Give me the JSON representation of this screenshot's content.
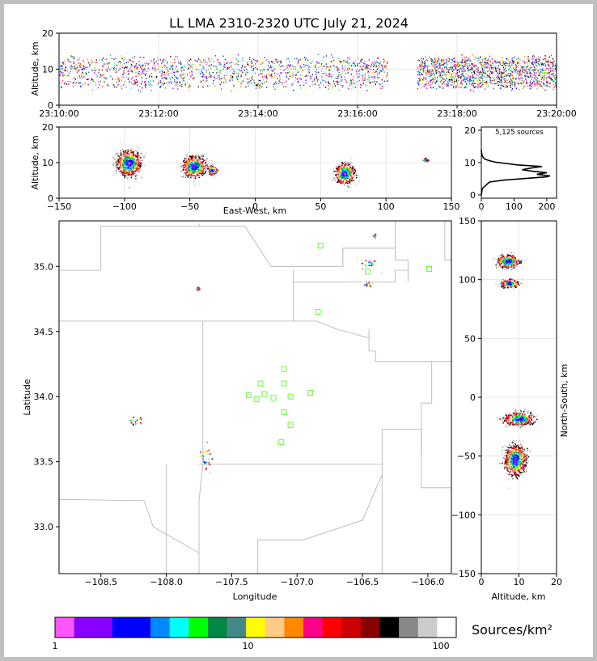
{
  "chart_data": [
    {
      "id": "time_height",
      "type": "scatter",
      "title": "LL LMA 2310-2320 UTC July 21, 2024",
      "xlabel": "",
      "ylabel": "Altitude, km",
      "x_ticks": [
        "23:10:00",
        "23:12:00",
        "23:14:00",
        "23:16:00",
        "23:18:00",
        "23:20:00"
      ],
      "y_ticks": [
        "0",
        "10",
        "20"
      ],
      "xlim": [
        0,
        10
      ],
      "ylim": [
        0,
        20
      ],
      "grid": true,
      "activity_bursts_minutes": [
        [
          0.0,
          6.6
        ],
        [
          7.2,
          10.0
        ]
      ],
      "altitude_band_km": [
        5,
        13
      ]
    },
    {
      "id": "ew_altitude",
      "type": "scatter",
      "xlabel": "East-West, km",
      "ylabel": "Altitude, km",
      "x_ticks": [
        "−150",
        "−100",
        "−50",
        "0",
        "50",
        "100",
        "150"
      ],
      "y_ticks": [
        "0",
        "10",
        "20"
      ],
      "xlim": [
        -150,
        150
      ],
      "ylim": [
        0,
        20
      ],
      "grid": true,
      "clusters": [
        {
          "x": -97,
          "z": 10,
          "sx": 5,
          "sz": 2
        },
        {
          "x": -47,
          "z": 9,
          "sx": 5,
          "sz": 1.6
        },
        {
          "x": -33,
          "z": 8,
          "sx": 2,
          "sz": 0.7
        },
        {
          "x": 68,
          "z": 7,
          "sx": 4,
          "sz": 1.6
        },
        {
          "x": 130,
          "z": 10.8,
          "sx": 1,
          "sz": 0.3
        }
      ]
    },
    {
      "id": "altitude_histogram",
      "type": "line",
      "annotation": "5,125 sources",
      "x_ticks": [
        "0",
        "100",
        "200"
      ],
      "y_ticks": [
        "0",
        "10",
        "20"
      ],
      "xlim": [
        0,
        230
      ],
      "ylim": [
        -1,
        21
      ],
      "profile": [
        [
          0,
          0
        ],
        [
          3,
          2
        ],
        [
          25,
          4
        ],
        [
          70,
          4.6
        ],
        [
          135,
          5.1
        ],
        [
          200,
          5.6
        ],
        [
          210,
          5.9
        ],
        [
          170,
          6.4
        ],
        [
          200,
          6.9
        ],
        [
          160,
          7.3
        ],
        [
          125,
          7.8
        ],
        [
          150,
          8.3
        ],
        [
          185,
          8.8
        ],
        [
          110,
          9.3
        ],
        [
          45,
          10.1
        ],
        [
          25,
          10.6
        ],
        [
          10,
          11.1
        ],
        [
          3,
          12
        ],
        [
          1,
          13
        ],
        [
          0,
          14
        ]
      ]
    },
    {
      "id": "plan_view",
      "type": "scatter",
      "xlabel": "Longitude",
      "ylabel": "Latitude",
      "x_ticks": [
        {
          "v": -108.5,
          "label": "−108.5"
        },
        {
          "v": -108.0,
          "label": "−108.0"
        },
        {
          "v": -107.5,
          "label": "−107.5"
        },
        {
          "v": -107.0,
          "label": "−107.0"
        },
        {
          "v": -106.5,
          "label": "−106.5"
        },
        {
          "v": -106.0,
          "label": "−106.0"
        }
      ],
      "y_ticks": [
        {
          "v": 33.0,
          "label": "33.0"
        },
        {
          "v": 33.5,
          "label": "33.5"
        },
        {
          "v": 34.0,
          "label": "34.0"
        },
        {
          "v": 34.5,
          "label": "34.5"
        },
        {
          "v": 35.0,
          "label": "35.0"
        }
      ],
      "xlim": [
        -108.82,
        -105.82
      ],
      "ylim": [
        32.64,
        35.35
      ],
      "stations": [
        [
          -106.82,
          35.16
        ],
        [
          -105.99,
          34.98
        ],
        [
          -106.46,
          34.96
        ],
        [
          -106.84,
          34.65
        ],
        [
          -107.1,
          34.21
        ],
        [
          -107.1,
          34.1
        ],
        [
          -107.28,
          34.1
        ],
        [
          -107.25,
          34.02
        ],
        [
          -107.37,
          34.01
        ],
        [
          -107.31,
          33.98
        ],
        [
          -107.18,
          33.99
        ],
        [
          -107.05,
          34.0
        ],
        [
          -106.9,
          34.03
        ],
        [
          -107.1,
          33.88
        ],
        [
          -107.05,
          33.78
        ],
        [
          -107.12,
          33.65
        ]
      ],
      "clusters": [
        {
          "lon": -106.45,
          "lat": 35.02,
          "slon": 0.035,
          "slat": 0.022
        },
        {
          "lon": -106.47,
          "lat": 34.86,
          "slon": 0.022,
          "slat": 0.01
        },
        {
          "lon": -108.24,
          "lat": 33.82,
          "slon": 0.035,
          "slat": 0.015
        },
        {
          "lon": -107.71,
          "lat": 33.53,
          "slon": 0.03,
          "slat": 0.045
        },
        {
          "lon": -107.76,
          "lat": 34.83,
          "slon": 0.008,
          "slat": 0.008
        },
        {
          "lon": -106.41,
          "lat": 35.24,
          "slon": 0.008,
          "slat": 0.01
        }
      ]
    },
    {
      "id": "altitude_ns",
      "type": "scatter",
      "xlabel": "Altitude, km",
      "ylabel": "North-South, km",
      "x_ticks": [
        "0",
        "10",
        "20"
      ],
      "y_ticks": [
        "−150",
        "−100",
        "−50",
        "0",
        "50",
        "100",
        "150"
      ],
      "xlim": [
        0,
        20
      ],
      "ylim": [
        -150,
        150
      ],
      "grid": true,
      "clusters": [
        {
          "z": 7,
          "y": 116,
          "sz": 1.6,
          "sy": 3
        },
        {
          "z": 7.5,
          "y": 97,
          "sz": 1.3,
          "sy": 2
        },
        {
          "z": 10,
          "y": -18,
          "sz": 2.2,
          "sy": 3
        },
        {
          "z": 9,
          "y": -53,
          "sz": 1.6,
          "sy": 7
        }
      ]
    },
    {
      "id": "colorbar",
      "type": "heatmap",
      "label": "Sources/km²",
      "scale": "log",
      "ticks": [
        {
          "v": 1,
          "label": "1"
        },
        {
          "v": 10,
          "label": "10"
        },
        {
          "v": 100,
          "label": "100"
        }
      ],
      "colors": [
        "#ff55ff",
        "#8800ff",
        "#8800ff",
        "#0000ff",
        "#0000ff",
        "#0088ff",
        "#00ffff",
        "#00ff00",
        "#008844",
        "#448888",
        "#ffff00",
        "#ffcc88",
        "#ff8800",
        "#ff0088",
        "#ff0000",
        "#cc0000",
        "#880000",
        "#000000",
        "#888888",
        "#cccccc",
        "#ffffff"
      ]
    }
  ]
}
